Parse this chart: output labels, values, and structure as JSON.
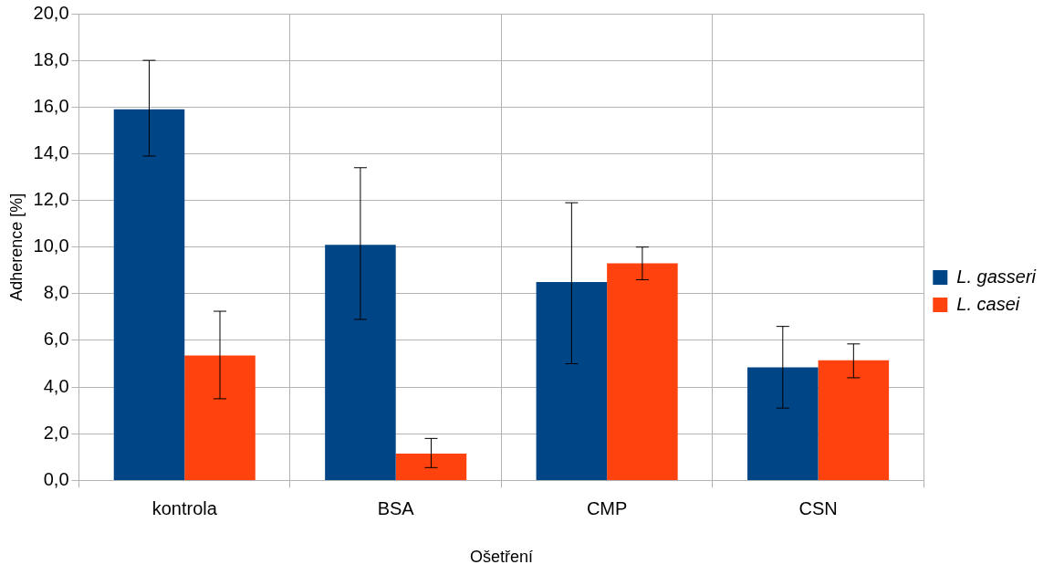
{
  "chart_data": {
    "type": "bar",
    "xlabel": "Ošetření",
    "ylabel": "Adherence [%]",
    "categories": [
      "kontrola",
      "BSA",
      "CMP",
      "CSN"
    ],
    "series": [
      {
        "name": "L. gasseri",
        "color": "#004586",
        "values": [
          15.9,
          10.1,
          8.5,
          4.85
        ],
        "errors": [
          [
            13.9,
            18.0
          ],
          [
            6.9,
            13.4
          ],
          [
            5.0,
            11.9
          ],
          [
            3.1,
            6.6
          ]
        ]
      },
      {
        "name": "L. casei",
        "color": "#ff420e",
        "values": [
          5.35,
          1.15,
          9.3,
          5.15
        ],
        "errors": [
          [
            3.5,
            7.25
          ],
          [
            0.55,
            1.8
          ],
          [
            8.6,
            10.0
          ],
          [
            4.4,
            5.85
          ]
        ]
      }
    ],
    "ylim": [
      0,
      20
    ],
    "yticks": [
      {
        "value": 0,
        "label": "0,0"
      },
      {
        "value": 2,
        "label": "2,0"
      },
      {
        "value": 4,
        "label": "4,0"
      },
      {
        "value": 6,
        "label": "6,0"
      },
      {
        "value": 8,
        "label": "8,0"
      },
      {
        "value": 10,
        "label": "10,0"
      },
      {
        "value": 12,
        "label": "12,0"
      },
      {
        "value": 14,
        "label": "14,0"
      },
      {
        "value": 16,
        "label": "16,0"
      },
      {
        "value": 18,
        "label": "18,0"
      },
      {
        "value": 20,
        "label": "20,0"
      }
    ],
    "grid": true,
    "legend": "right"
  }
}
